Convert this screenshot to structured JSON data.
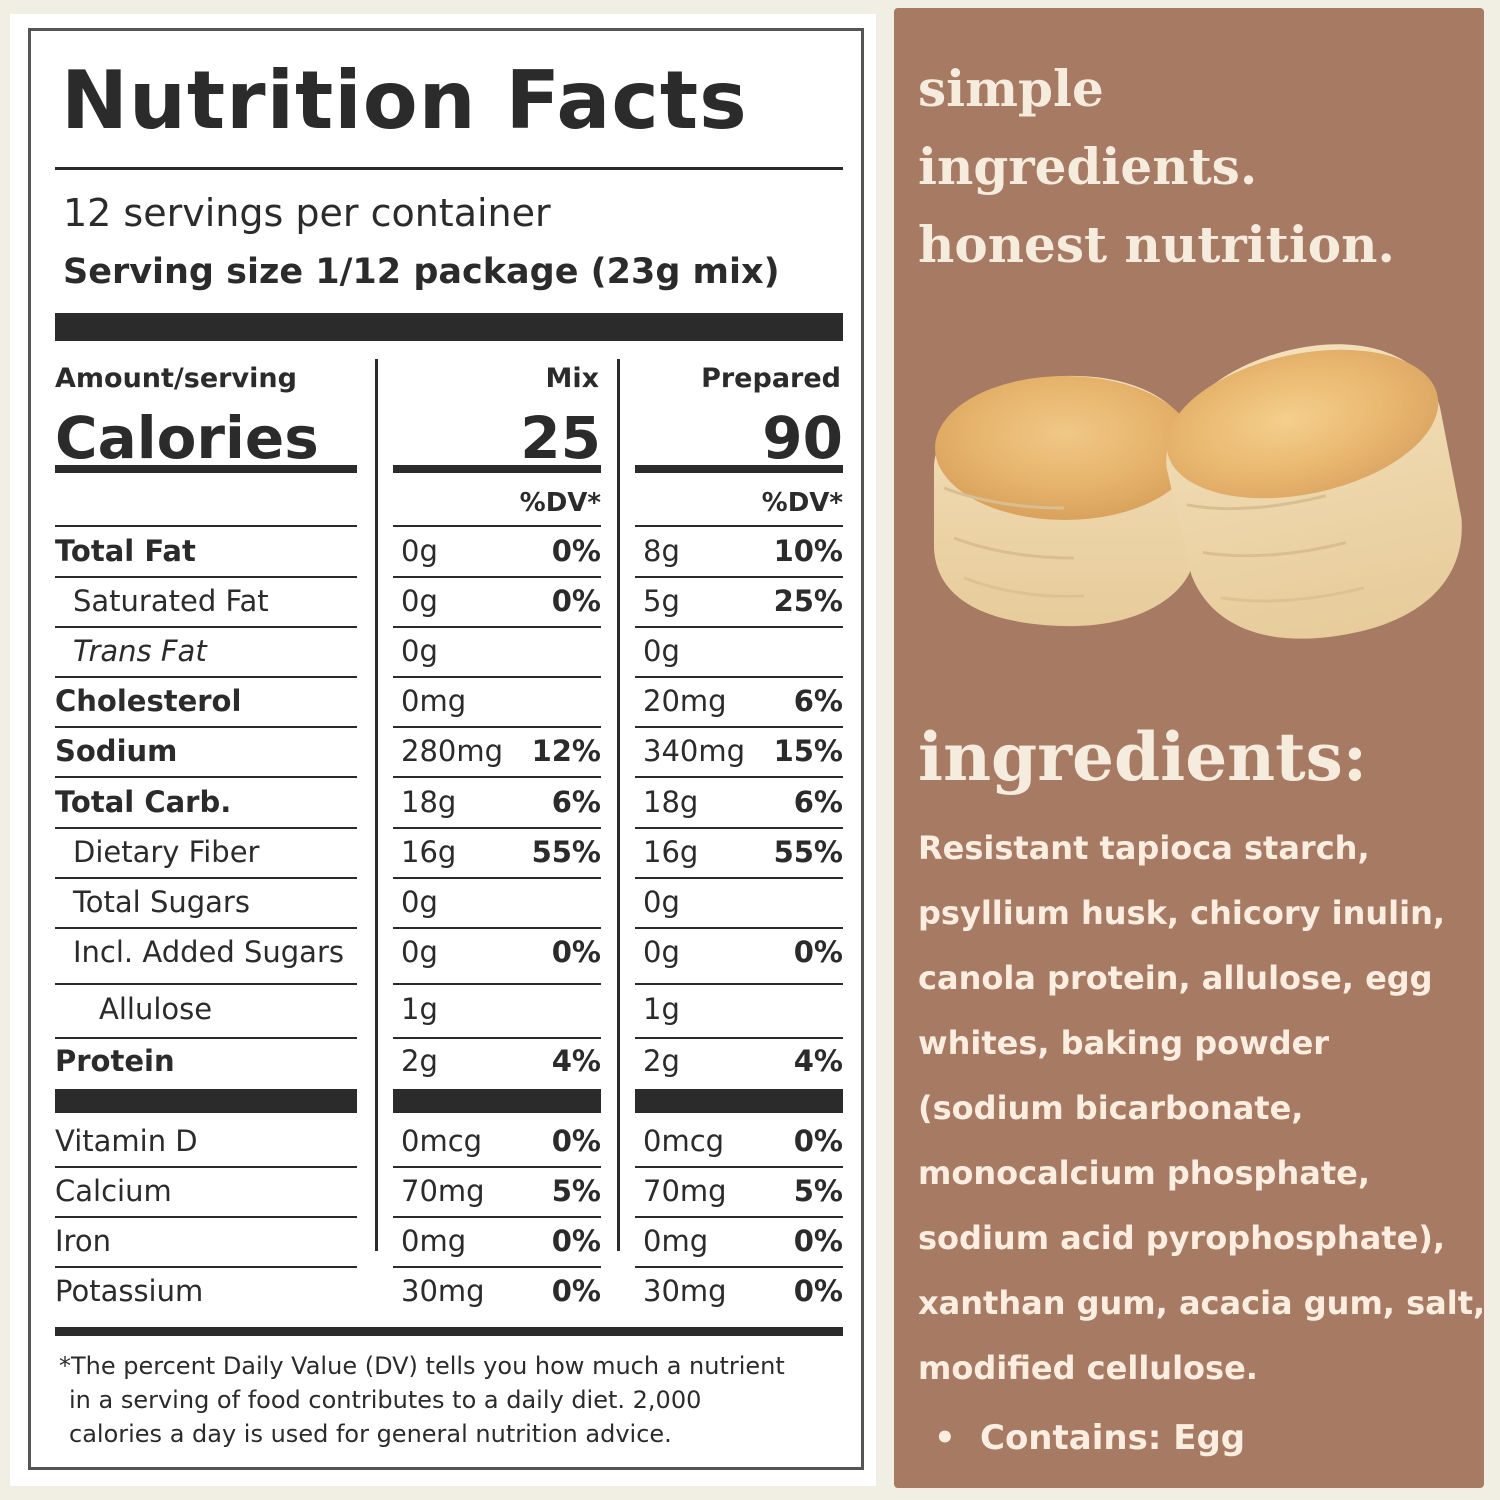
{
  "label": {
    "title": "Nutrition Facts",
    "servings_per_container": "12 servings per container",
    "serving_size": "Serving size 1/12 package (23g mix)",
    "amount_per_serving": "Amount/serving",
    "calories_label": "Calories",
    "columns": [
      {
        "name": "Mix",
        "calories": "25",
        "dv_header": "%DV*"
      },
      {
        "name": "Prepared",
        "calories": "90",
        "dv_header": "%DV*"
      }
    ],
    "nutrients": [
      {
        "name": "Total Fat",
        "mix_amount": "0g",
        "mix_dv": "0%",
        "prep_amount": "8g",
        "prep_dv": "10%"
      },
      {
        "name": "Saturated Fat",
        "mix_amount": "0g",
        "mix_dv": "0%",
        "prep_amount": "5g",
        "prep_dv": "25%"
      },
      {
        "name": "Trans Fat",
        "mix_amount": "0g",
        "mix_dv": "",
        "prep_amount": "0g",
        "prep_dv": ""
      },
      {
        "name": "Cholesterol",
        "mix_amount": "0mg",
        "mix_dv": "",
        "prep_amount": "20mg",
        "prep_dv": "6%"
      },
      {
        "name": "Sodium",
        "mix_amount": "280mg",
        "mix_dv": "12%",
        "prep_amount": "340mg",
        "prep_dv": "15%"
      },
      {
        "name": "Total Carb.",
        "mix_amount": "18g",
        "mix_dv": "6%",
        "prep_amount": "18g",
        "prep_dv": "6%"
      },
      {
        "name": "Dietary Fiber",
        "mix_amount": "16g",
        "mix_dv": "55%",
        "prep_amount": "16g",
        "prep_dv": "55%"
      },
      {
        "name": "Total Sugars",
        "mix_amount": "0g",
        "mix_dv": "",
        "prep_amount": "0g",
        "prep_dv": ""
      },
      {
        "name": "Incl. Added Sugars",
        "mix_amount": "0g",
        "mix_dv": "0%",
        "prep_amount": "0g",
        "prep_dv": "0%"
      },
      {
        "name": "Allulose",
        "mix_amount": "1g",
        "mix_dv": "",
        "prep_amount": "1g",
        "prep_dv": ""
      },
      {
        "name": "Protein",
        "mix_amount": "2g",
        "mix_dv": "4%",
        "prep_amount": "2g",
        "prep_dv": "4%"
      }
    ],
    "vitamins": [
      {
        "name": "Vitamin D",
        "mix_amount": "0mcg",
        "mix_dv": "0%",
        "prep_amount": "0mcg",
        "prep_dv": "0%"
      },
      {
        "name": "Calcium",
        "mix_amount": "70mg",
        "mix_dv": "5%",
        "prep_amount": "70mg",
        "prep_dv": "5%"
      },
      {
        "name": "Iron",
        "mix_amount": "0mg",
        "mix_dv": "0%",
        "prep_amount": "0mg",
        "prep_dv": "0%"
      },
      {
        "name": "Potassium",
        "mix_amount": "30mg",
        "mix_dv": "0%",
        "prep_amount": "30mg",
        "prep_dv": "0%"
      }
    ],
    "footnote": [
      "*The percent Daily Value (DV) tells you how much a nutrient",
      "in a serving of food contributes to a daily diet. 2,000",
      "calories a day is used for general nutrition advice."
    ]
  },
  "right": {
    "tagline": [
      "simple",
      "ingredients.",
      "honest nutrition."
    ],
    "ingredients_heading": "ingredients:",
    "ingredients_lines": [
      "Resistant tapioca starch,",
      "psyllium husk, chicory inulin,",
      "canola protein, allulose, egg",
      "whites, baking powder",
      "(sodium bicarbonate,",
      "monocalcium phosphate,",
      "sodium acid pyrophosphate),",
      "xanthan gum, acacia gum, salt,",
      "modified cellulose."
    ],
    "contains": "Contains: Egg"
  },
  "colors": {
    "panel_brown": "#a77a64",
    "cream_text": "#f6ecdd",
    "label_ink": "#2b2b2b",
    "page_bg": "#f1efe4"
  }
}
